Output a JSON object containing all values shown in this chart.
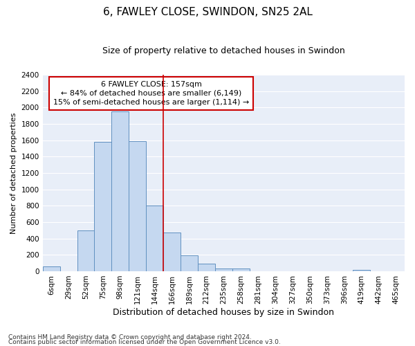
{
  "title": "6, FAWLEY CLOSE, SWINDON, SN25 2AL",
  "subtitle": "Size of property relative to detached houses in Swindon",
  "xlabel": "Distribution of detached houses by size in Swindon",
  "ylabel": "Number of detached properties",
  "bin_labels": [
    "6sqm",
    "29sqm",
    "52sqm",
    "75sqm",
    "98sqm",
    "121sqm",
    "144sqm",
    "166sqm",
    "189sqm",
    "212sqm",
    "235sqm",
    "258sqm",
    "281sqm",
    "304sqm",
    "327sqm",
    "350sqm",
    "373sqm",
    "396sqm",
    "419sqm",
    "442sqm",
    "465sqm"
  ],
  "values": [
    55,
    0,
    500,
    1580,
    1950,
    1590,
    800,
    475,
    195,
    90,
    35,
    30,
    0,
    0,
    0,
    0,
    0,
    0,
    20,
    0,
    0
  ],
  "bar_color": "#c5d8f0",
  "bar_edge_color": "#6090c0",
  "vline_position": 6,
  "vline_color": "#cc0000",
  "annotation_text": "6 FAWLEY CLOSE: 157sqm\n← 84% of detached houses are smaller (6,149)\n15% of semi-detached houses are larger (1,114) →",
  "annotation_box_edgecolor": "#cc0000",
  "background_color": "#e8eef8",
  "ylim": [
    0,
    2400
  ],
  "yticks": [
    0,
    200,
    400,
    600,
    800,
    1000,
    1200,
    1400,
    1600,
    1800,
    2000,
    2200,
    2400
  ],
  "footnote1": "Contains HM Land Registry data © Crown copyright and database right 2024.",
  "footnote2": "Contains public sector information licensed under the Open Government Licence v3.0.",
  "title_fontsize": 11,
  "subtitle_fontsize": 9,
  "ylabel_fontsize": 8,
  "xlabel_fontsize": 9,
  "annotation_fontsize": 8,
  "tick_fontsize": 7.5,
  "footnote_fontsize": 6.5
}
